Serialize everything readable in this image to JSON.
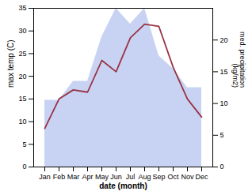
{
  "chart_data": {
    "type": "line",
    "categories": [
      "Jan",
      "Feb",
      "Mar",
      "Apr",
      "May",
      "Jun",
      "Jul",
      "Aug",
      "Sep",
      "Oct",
      "Nov",
      "Dec"
    ],
    "xlabel": "date (month)",
    "ylabel": "max temp (C)",
    "y2label": "med. precipitation\n(kg/m2)",
    "ylim": [
      0,
      35
    ],
    "yticks": [
      0,
      5,
      10,
      15,
      20,
      25,
      30,
      35
    ],
    "y2lim": [
      0,
      25
    ],
    "y2ticks": [
      0,
      5,
      10,
      15,
      20
    ],
    "series": [
      {
        "type": "area",
        "axis": "y2",
        "color": "#aabbee",
        "values": [
          10.5,
          10.5,
          13.5,
          13.5,
          20.5,
          25.0,
          22.5,
          25.0,
          17.5,
          15.5,
          12.5,
          12.5
        ]
      },
      {
        "type": "line",
        "color": "#993344",
        "values": [
          8.5,
          15.0,
          17.0,
          16.5,
          23.5,
          21.0,
          28.5,
          31.5,
          31.0,
          22.0,
          15.0,
          11.0
        ]
      }
    ]
  }
}
